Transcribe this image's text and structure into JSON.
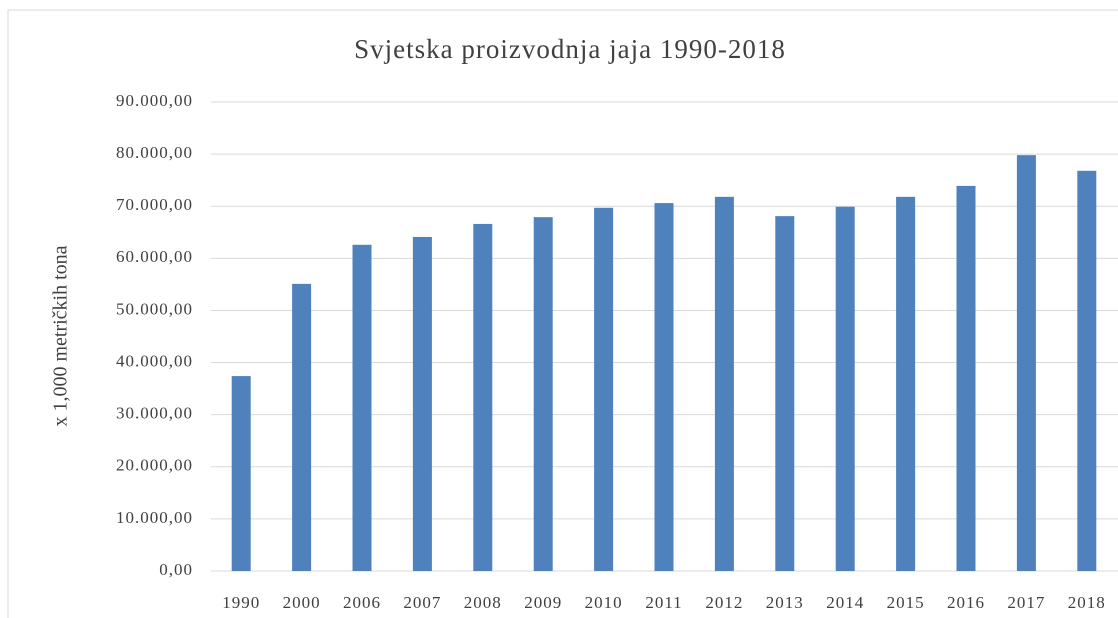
{
  "chart_data": {
    "type": "bar",
    "title": "Svjetska proizvodnja jaja 1990-2018",
    "y_label": "x 1,000 metričkih tona",
    "categories": [
      "1990",
      "2000",
      "2006",
      "2007",
      "2008",
      "2009",
      "2010",
      "2011",
      "2012",
      "2013",
      "2014",
      "2015",
      "2016",
      "2017",
      "2018"
    ],
    "values": [
      37400,
      55100,
      62600,
      64100,
      66600,
      67900,
      69700,
      70600,
      71800,
      68100,
      69900,
      71800,
      73900,
      79800,
      76800
    ],
    "color": "#4f81bd",
    "ylim": [
      0,
      90000
    ],
    "yticks": [
      {
        "value": 0,
        "label": "0,00"
      },
      {
        "value": 10000,
        "label": "10.000,00"
      },
      {
        "value": 20000,
        "label": "20.000,00"
      },
      {
        "value": 30000,
        "label": "30.000,00"
      },
      {
        "value": 40000,
        "label": "40.000,00"
      },
      {
        "value": 50000,
        "label": "50.000,00"
      },
      {
        "value": 60000,
        "label": "60.000,00"
      },
      {
        "value": 70000,
        "label": "70.000,00"
      },
      {
        "value": 80000,
        "label": "80.000,00"
      },
      {
        "value": 90000,
        "label": "90.000,00"
      }
    ],
    "grid": true
  }
}
